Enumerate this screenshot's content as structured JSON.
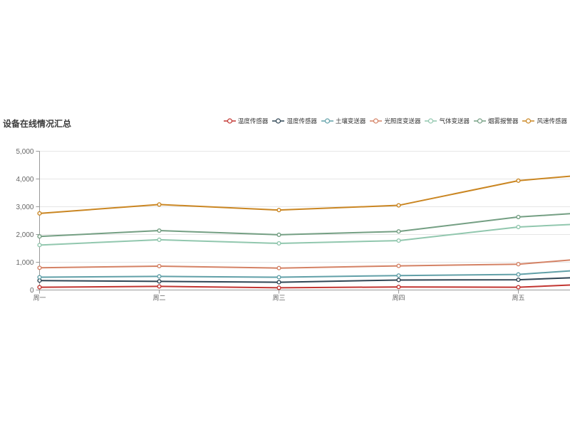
{
  "page": {
    "background": "#ffffff"
  },
  "chart_data": {
    "type": "line",
    "title": "设备在线情况汇总",
    "xlabel": "",
    "ylabel": "",
    "categories": [
      "周一",
      "周二",
      "周三",
      "周四",
      "周五"
    ],
    "x_note": "chart plot area is clipped at the right edge; lines continue rising past 周五",
    "ylim": [
      0,
      5000
    ],
    "y_ticks": [
      "0",
      "1,000",
      "2,000",
      "3,000",
      "4,000",
      "5,000"
    ],
    "grid": true,
    "legend_position": "top-right",
    "marker": "hollow-circle",
    "series": [
      {
        "id": "temperature-sensor",
        "name": "温度传感器",
        "color": "#c23531",
        "values": [
          100,
          130,
          80,
          110,
          100
        ],
        "edge_value": 180
      },
      {
        "id": "humidity-sensor",
        "name": "湿度传感器",
        "color": "#2f4554",
        "values": [
          340,
          310,
          280,
          360,
          370
        ],
        "edge_value": 440
      },
      {
        "id": "soil-transmitter",
        "name": "土壤变送器",
        "color": "#61a0a8",
        "values": [
          460,
          490,
          460,
          520,
          560
        ],
        "edge_value": 690
      },
      {
        "id": "light-transmitter",
        "name": "光照度变送器",
        "color": "#d48265",
        "values": [
          800,
          860,
          790,
          870,
          930
        ],
        "edge_value": 1080
      },
      {
        "id": "gas-transmitter",
        "name": "气体变送器",
        "color": "#91c7ae",
        "values": [
          1620,
          1810,
          1680,
          1780,
          2270
        ],
        "edge_value": 2360
      },
      {
        "id": "smoke-alarm",
        "name": "烟雾报警器",
        "color": "#749f83",
        "values": [
          1930,
          2140,
          1990,
          2110,
          2630
        ],
        "edge_value": 2750
      },
      {
        "id": "wind-sensor",
        "name": "风速传感器",
        "color": "#ca8622",
        "values": [
          2760,
          3080,
          2880,
          3050,
          3940
        ],
        "edge_value": 4100
      }
    ],
    "colors": {
      "grid_line": "#e6e6e6",
      "axis_line": "#999999",
      "axis_label": "#666666",
      "legend_label": "#333333",
      "title_text": "#3c3c3c"
    }
  }
}
